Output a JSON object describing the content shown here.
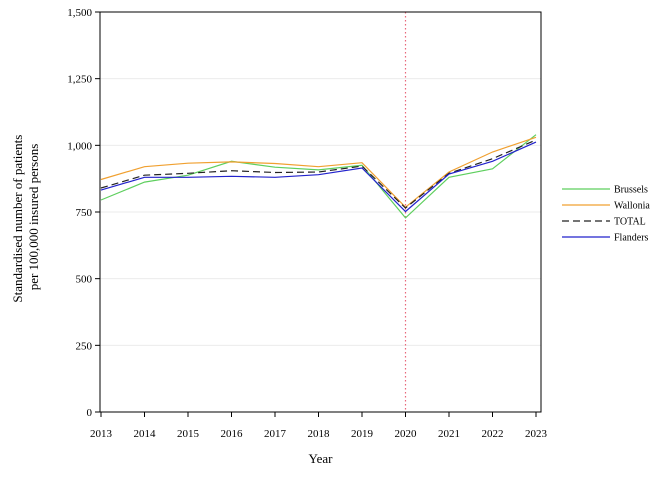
{
  "chart_data": {
    "type": "line",
    "title": "",
    "xlabel": "Year",
    "ylabel_lines": [
      "Standardised number of patients",
      "per 100,000 insured persons"
    ],
    "x": [
      "2013",
      "2014",
      "2015",
      "2016",
      "2017",
      "2018",
      "2019",
      "2020",
      "2021",
      "2022",
      "2023"
    ],
    "ylim": [
      0,
      1500
    ],
    "yticks": [
      "0",
      "250",
      "500",
      "750",
      "1,000",
      "1,250",
      "1,500"
    ],
    "ytick_values": [
      0,
      250,
      500,
      750,
      1000,
      1250,
      1500
    ],
    "grid": "horizontal",
    "legend_position": "right",
    "reference_line": {
      "x": "2020",
      "color": "#e8677a",
      "style": "dotted"
    },
    "series": [
      {
        "name": "Brussels",
        "color": "#5ecf5e",
        "dash": "solid",
        "values": [
          795,
          862,
          888,
          940,
          918,
          908,
          925,
          728,
          880,
          912,
          1040
        ]
      },
      {
        "name": "Wallonia",
        "color": "#f0a030",
        "dash": "solid",
        "values": [
          872,
          920,
          933,
          938,
          932,
          920,
          935,
          768,
          900,
          975,
          1030
        ]
      },
      {
        "name": "TOTAL",
        "color": "#222222",
        "dash": "dashed",
        "values": [
          840,
          888,
          895,
          905,
          898,
          900,
          922,
          765,
          895,
          950,
          1020
        ]
      },
      {
        "name": "Flanders",
        "color": "#2222cc",
        "dash": "solid",
        "values": [
          832,
          880,
          880,
          884,
          880,
          890,
          915,
          752,
          892,
          940,
          1012
        ]
      }
    ]
  }
}
